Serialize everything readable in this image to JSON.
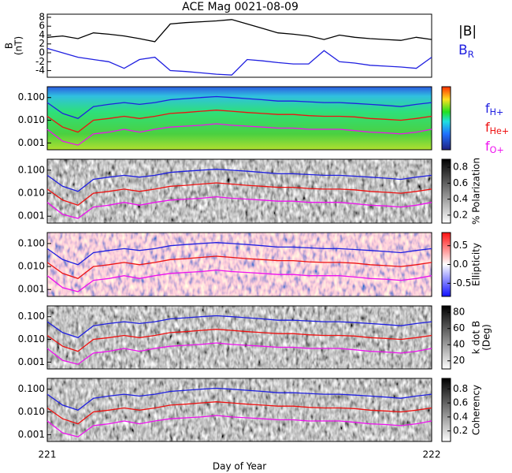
{
  "chart_data": [
    {
      "type": "line",
      "title": "ACE Mag 0021-08-09",
      "y_label": [
        "B",
        "(nT)"
      ],
      "x": [
        221.0,
        221.04,
        221.08,
        221.12,
        221.16,
        221.2,
        221.24,
        221.28,
        221.32,
        221.36,
        221.4,
        221.44,
        221.48,
        221.52,
        221.56,
        221.6,
        221.64,
        221.68,
        221.72,
        221.76,
        221.8,
        221.84,
        221.88,
        221.92,
        221.96,
        222.0
      ],
      "xlim": [
        221,
        222
      ],
      "ylim": [
        -5.5,
        8.7
      ],
      "yticks": [
        -4,
        -2,
        0,
        2,
        4,
        6,
        8
      ],
      "series": [
        {
          "name": "|B|",
          "color": "#000000",
          "values": [
            3.5,
            3.8,
            3.2,
            4.5,
            4.2,
            3.8,
            3.2,
            2.5,
            6.5,
            6.8,
            7.0,
            7.2,
            7.5,
            6.5,
            5.5,
            4.5,
            4.2,
            3.8,
            3.0,
            4.0,
            3.5,
            3.2,
            3.0,
            2.8,
            3.5,
            3.0
          ]
        },
        {
          "name": "B",
          "subscript": "R",
          "color": "#1f1fe0",
          "values": [
            1.0,
            0.0,
            -1.0,
            -1.5,
            -2.0,
            -3.5,
            -1.5,
            -1.0,
            -4.0,
            -4.2,
            -4.5,
            -4.8,
            -5.0,
            -1.5,
            -1.8,
            -2.2,
            -2.5,
            -2.5,
            0.5,
            -2.0,
            -2.3,
            -2.8,
            -3.0,
            -3.2,
            -3.5,
            -1.0
          ]
        }
      ]
    },
    {
      "type": "heatmap",
      "colormap": "rainbow",
      "log_y": true,
      "x": [
        221.0,
        221.04,
        221.08,
        221.12,
        221.16,
        221.2,
        221.24,
        221.28,
        221.32,
        221.36,
        221.4,
        221.44,
        221.48,
        221.52,
        221.56,
        221.6,
        221.64,
        221.68,
        221.72,
        221.76,
        221.8,
        221.84,
        221.88,
        221.92,
        221.96,
        222.0
      ],
      "ylim": [
        0.0005,
        0.3
      ],
      "yticks": [
        {
          "value": 0.001,
          "label": "0.001"
        },
        {
          "value": 0.01,
          "label": "0.010"
        },
        {
          "value": 0.1,
          "label": "0.100"
        }
      ],
      "series": [
        {
          "name": "f",
          "subscript": "H+",
          "color": "#1f1fe0",
          "values": [
            0.06,
            0.02,
            0.012,
            0.04,
            0.05,
            0.06,
            0.05,
            0.06,
            0.08,
            0.09,
            0.1,
            0.11,
            0.1,
            0.09,
            0.08,
            0.07,
            0.07,
            0.065,
            0.06,
            0.06,
            0.055,
            0.05,
            0.045,
            0.04,
            0.05,
            0.06
          ]
        },
        {
          "name": "f",
          "subscript": "He+",
          "color": "#ee1111",
          "values": [
            0.015,
            0.005,
            0.003,
            0.01,
            0.012,
            0.015,
            0.012,
            0.015,
            0.02,
            0.022,
            0.025,
            0.028,
            0.025,
            0.022,
            0.02,
            0.018,
            0.018,
            0.016,
            0.015,
            0.015,
            0.014,
            0.012,
            0.011,
            0.01,
            0.012,
            0.015
          ]
        },
        {
          "name": "f",
          "subscript": "O+",
          "color": "#ee11ee",
          "values": [
            0.004,
            0.0012,
            0.0008,
            0.0025,
            0.003,
            0.004,
            0.003,
            0.004,
            0.005,
            0.0055,
            0.006,
            0.007,
            0.006,
            0.0055,
            0.005,
            0.0045,
            0.0045,
            0.004,
            0.004,
            0.004,
            0.0035,
            0.003,
            0.0028,
            0.0025,
            0.003,
            0.004
          ]
        }
      ]
    },
    {
      "type": "heatmap",
      "colormap": "gray",
      "colorbar_label": [
        "% Polarization"
      ],
      "colorbar_lim": [
        0.1,
        0.9
      ],
      "colorbar_ticks": [
        0.2,
        0.4,
        0.6,
        0.8
      ]
    },
    {
      "type": "heatmap",
      "colormap": "bwr",
      "colorbar_label": [
        "Ellipticity"
      ],
      "colorbar_lim": [
        -0.85,
        0.85
      ],
      "colorbar_ticks": [
        -0.5,
        {
          "value": 0,
          "label": "0.0"
        },
        0.5
      ]
    },
    {
      "type": "heatmap",
      "colormap": "gray",
      "colorbar_label": [
        "k dot B",
        "(Deg)"
      ],
      "colorbar_lim": [
        10,
        88
      ],
      "colorbar_ticks": [
        20,
        40,
        60,
        80
      ]
    },
    {
      "type": "heatmap",
      "colormap": "gray",
      "colorbar_label": [
        "Coherency"
      ],
      "colorbar_lim": [
        0.05,
        0.95
      ],
      "colorbar_ticks": [
        0.2,
        0.4,
        0.6,
        0.8
      ],
      "x_label": "Day of Year",
      "xticks": [
        221,
        222
      ]
    }
  ]
}
